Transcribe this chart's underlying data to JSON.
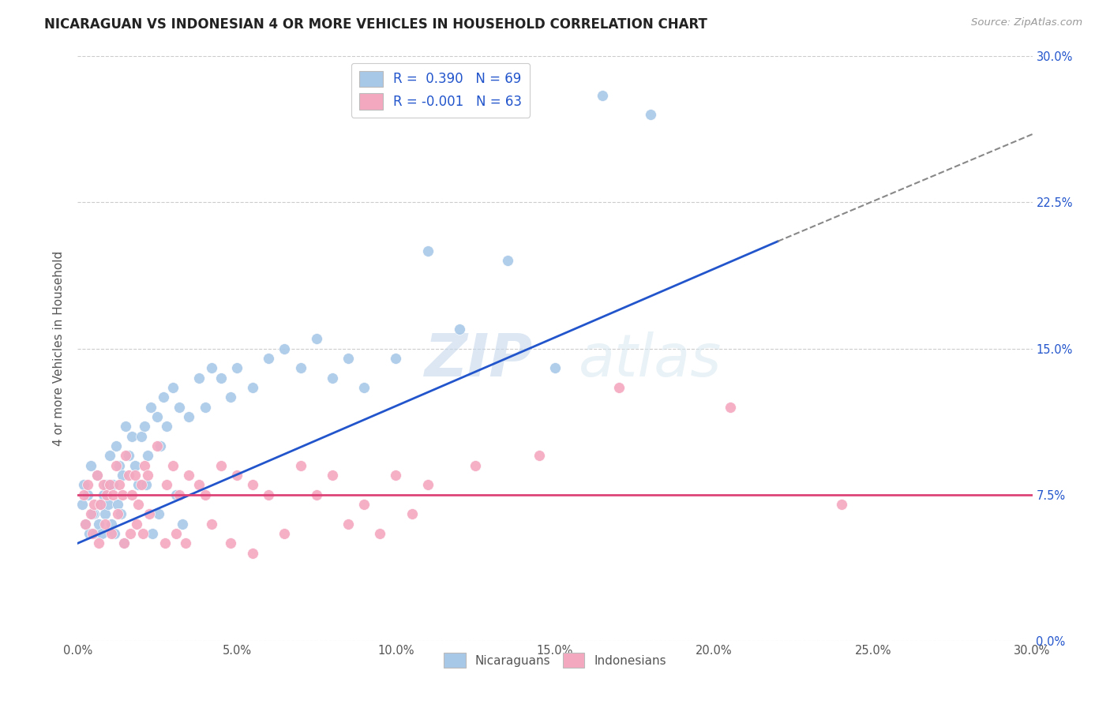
{
  "title": "NICARAGUAN VS INDONESIAN 4 OR MORE VEHICLES IN HOUSEHOLD CORRELATION CHART",
  "source": "Source: ZipAtlas.com",
  "ylabel": "4 or more Vehicles in Household",
  "xlim": [
    0.0,
    30.0
  ],
  "ylim": [
    0.0,
    30.0
  ],
  "yticks": [
    0.0,
    7.5,
    15.0,
    22.5,
    30.0
  ],
  "xticks": [
    0.0,
    5.0,
    10.0,
    15.0,
    20.0,
    25.0,
    30.0
  ],
  "blue_color": "#a8c8e8",
  "pink_color": "#f4a8c0",
  "blue_line_color": "#2255cc",
  "pink_line_color": "#dd4477",
  "grid_color": "#cccccc",
  "background_color": "#ffffff",
  "watermark_zip": "ZIP",
  "watermark_atlas": "atlas",
  "blue_scatter_x": [
    0.2,
    0.3,
    0.4,
    0.5,
    0.6,
    0.7,
    0.8,
    0.9,
    1.0,
    1.1,
    1.2,
    1.3,
    1.4,
    1.5,
    1.6,
    1.7,
    1.8,
    1.9,
    2.0,
    2.1,
    2.2,
    2.3,
    2.5,
    2.6,
    2.7,
    2.8,
    3.0,
    3.2,
    3.5,
    3.8,
    4.0,
    4.2,
    4.5,
    4.8,
    5.0,
    5.5,
    6.0,
    6.5,
    7.0,
    7.5,
    8.0,
    8.5,
    9.0,
    10.0,
    11.0,
    12.0,
    13.5,
    15.0,
    16.5,
    18.0,
    0.15,
    0.25,
    0.35,
    0.45,
    0.55,
    0.65,
    0.75,
    0.85,
    0.95,
    1.05,
    1.15,
    1.25,
    1.35,
    1.45,
    2.15,
    2.35,
    2.55,
    3.1,
    3.3
  ],
  "blue_scatter_y": [
    8.0,
    7.5,
    9.0,
    6.5,
    8.5,
    7.0,
    7.5,
    8.0,
    9.5,
    8.0,
    10.0,
    9.0,
    8.5,
    11.0,
    9.5,
    10.5,
    9.0,
    8.0,
    10.5,
    11.0,
    9.5,
    12.0,
    11.5,
    10.0,
    12.5,
    11.0,
    13.0,
    12.0,
    11.5,
    13.5,
    12.0,
    14.0,
    13.5,
    12.5,
    14.0,
    13.0,
    14.5,
    15.0,
    14.0,
    15.5,
    13.5,
    14.5,
    13.0,
    14.5,
    20.0,
    16.0,
    19.5,
    14.0,
    28.0,
    27.0,
    7.0,
    6.0,
    5.5,
    6.5,
    5.5,
    6.0,
    5.5,
    6.5,
    7.0,
    6.0,
    5.5,
    7.0,
    6.5,
    5.0,
    8.0,
    5.5,
    6.5,
    7.5,
    6.0
  ],
  "pink_scatter_x": [
    0.2,
    0.3,
    0.4,
    0.5,
    0.6,
    0.7,
    0.8,
    0.9,
    1.0,
    1.1,
    1.2,
    1.3,
    1.4,
    1.5,
    1.6,
    1.7,
    1.8,
    1.9,
    2.0,
    2.1,
    2.2,
    2.5,
    2.8,
    3.0,
    3.2,
    3.5,
    3.8,
    4.0,
    4.5,
    5.0,
    5.5,
    6.0,
    7.0,
    8.0,
    9.0,
    10.0,
    11.0,
    12.5,
    14.5,
    17.0,
    20.5,
    24.0,
    0.25,
    0.45,
    0.65,
    0.85,
    1.05,
    1.25,
    1.45,
    1.65,
    1.85,
    2.05,
    2.25,
    2.75,
    3.1,
    3.4,
    4.2,
    4.8,
    5.5,
    6.5,
    7.5,
    8.5,
    9.5,
    10.5
  ],
  "pink_scatter_y": [
    7.5,
    8.0,
    6.5,
    7.0,
    8.5,
    7.0,
    8.0,
    7.5,
    8.0,
    7.5,
    9.0,
    8.0,
    7.5,
    9.5,
    8.5,
    7.5,
    8.5,
    7.0,
    8.0,
    9.0,
    8.5,
    10.0,
    8.0,
    9.0,
    7.5,
    8.5,
    8.0,
    7.5,
    9.0,
    8.5,
    8.0,
    7.5,
    9.0,
    8.5,
    7.0,
    8.5,
    8.0,
    9.0,
    9.5,
    13.0,
    12.0,
    7.0,
    6.0,
    5.5,
    5.0,
    6.0,
    5.5,
    6.5,
    5.0,
    5.5,
    6.0,
    5.5,
    6.5,
    5.0,
    5.5,
    5.0,
    6.0,
    5.0,
    4.5,
    5.5,
    7.5,
    6.0,
    5.5,
    6.5
  ],
  "blue_line_x0": 0.0,
  "blue_line_y0": 5.0,
  "blue_line_x1": 22.0,
  "blue_line_y1": 20.5,
  "blue_dash_x0": 22.0,
  "blue_dash_y0": 20.5,
  "blue_dash_x1": 30.0,
  "blue_dash_y1": 26.0,
  "pink_line_x0": 0.0,
  "pink_line_y0": 7.5,
  "pink_line_x1": 30.0,
  "pink_line_y1": 7.5
}
